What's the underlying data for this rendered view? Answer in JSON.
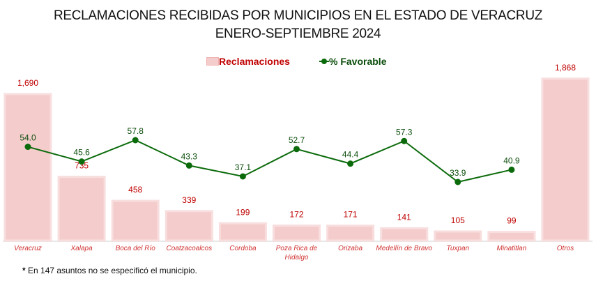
{
  "chart_data": {
    "type": "bar+line",
    "title": "RECLAMACIONES RECIBIDAS POR MUNICIPIOS EN EL ESTADO DE VERACRUZ",
    "subtitle": "ENERO-SEPTIEMBRE 2024",
    "categories": [
      "Veracruz",
      "Xalapa",
      "Boca del Río",
      "Coatzacoalcos",
      "Cordoba",
      "Poza Rica de Hidalgo",
      "Orizaba",
      "Medellín de Bravo",
      "Tuxpan",
      "Minatitlan",
      "Otros"
    ],
    "series": [
      {
        "name": "Reclamaciones",
        "type": "bar",
        "values": [
          1690,
          735,
          458,
          339,
          199,
          172,
          171,
          141,
          105,
          99,
          1868
        ],
        "labels": [
          "1,690",
          "735",
          "458",
          "339",
          "199",
          "172",
          "171",
          "141",
          "105",
          "99",
          "1,868"
        ],
        "color": "#f4cccc"
      },
      {
        "name": "% Favorable",
        "type": "line",
        "values": [
          54.0,
          45.6,
          57.8,
          43.3,
          37.1,
          52.7,
          44.4,
          57.3,
          33.9,
          40.9,
          null
        ],
        "labels": [
          "54.0",
          "45.6",
          "57.8",
          "43.3",
          "37.1",
          "52.7",
          "44.4",
          "57.3",
          "33.9",
          "40.9",
          ""
        ],
        "color": "#0b6b0b"
      }
    ],
    "legend_position": "top-center",
    "grid": false
  },
  "note": "En 147 asuntos no se especificó el municipio.",
  "note_marker": "*"
}
